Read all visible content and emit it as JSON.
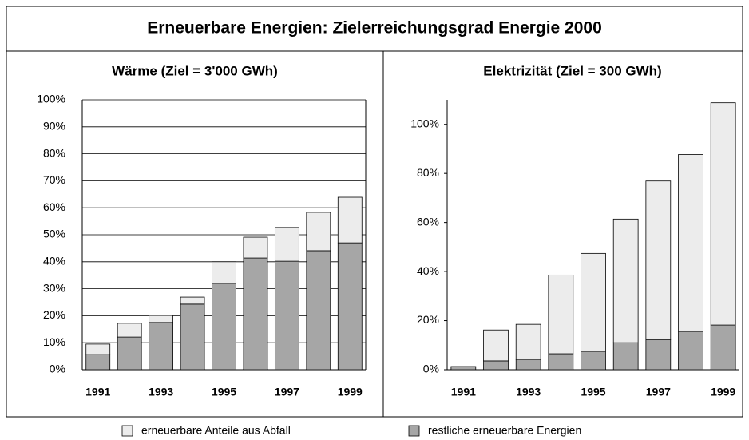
{
  "title": "Erneuerbare Energien:  Zielerreichungsgrad Energie 2000",
  "chart_data": [
    {
      "type": "stacked_bar",
      "title": "Wärme (Ziel = 3'000 GWh)",
      "categories": [
        "1991",
        null,
        "1993",
        null,
        "1995",
        null,
        "1997",
        null,
        "1999"
      ],
      "series": [
        {
          "name": "restliche erneuerbare Energien",
          "color": "#a6a6a6",
          "values": [
            5.6,
            12.1,
            17.5,
            24.3,
            32,
            41.4,
            40.2,
            44.1,
            47
          ]
        },
        {
          "name": "erneuerbare Anteile aus Abfall",
          "color": "#ececec",
          "values": [
            3.9,
            5.1,
            2.6,
            2.6,
            8,
            7.7,
            12.5,
            14.2,
            16.9
          ]
        }
      ],
      "ylim": [
        0,
        100
      ],
      "yticks": [
        {
          "value": 0,
          "label": "0%"
        },
        {
          "value": 10,
          "label": "10%"
        },
        {
          "value": 20,
          "label": "20%"
        },
        {
          "value": 30,
          "label": "30%"
        },
        {
          "value": 40,
          "label": "40%"
        },
        {
          "value": 50,
          "label": "50%"
        },
        {
          "value": 60,
          "label": "60%"
        },
        {
          "value": 70,
          "label": "70%"
        },
        {
          "value": 80,
          "label": "80%"
        },
        {
          "value": 90,
          "label": "90%"
        },
        {
          "value": 100,
          "label": "100%"
        }
      ],
      "grid": true
    },
    {
      "type": "stacked_bar",
      "title": "Elektrizität (Ziel = 300 GWh)",
      "categories": [
        "1991",
        null,
        "1993",
        null,
        "1995",
        null,
        "1997",
        null,
        "1999"
      ],
      "series": [
        {
          "color": "#a6a6a6",
          "values": [
            1.3,
            3.6,
            4.2,
            6.5,
            7.5,
            11,
            12.3,
            15.6,
            18.2
          ]
        },
        {
          "color": "#ececec",
          "values": [
            0,
            12.6,
            14.3,
            32.1,
            39.9,
            50.4,
            64.6,
            72.1,
            90.6
          ]
        }
      ],
      "ylim": [
        0,
        110
      ],
      "yticks": [
        {
          "value": 0,
          "label": "0%"
        },
        {
          "value": 20,
          "label": "20%"
        },
        {
          "value": 40,
          "label": "40%"
        },
        {
          "value": 60,
          "label": "60%"
        },
        {
          "value": 80,
          "label": "80%"
        },
        {
          "value": 100,
          "label": "100%"
        }
      ],
      "grid": false
    }
  ]
}
